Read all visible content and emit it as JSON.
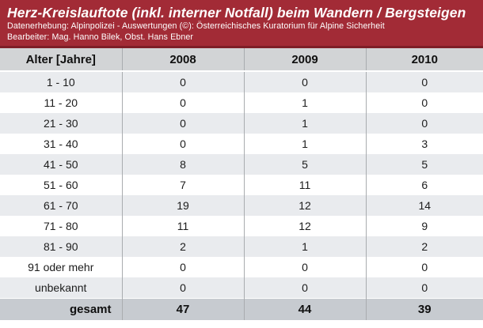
{
  "banner": {
    "title": "Herz-Kreislauftote (inkl. interner Notfall) beim Wandern / Bergsteigen",
    "subtitle1": "Datenerhebung: Alpinpolizei - Auswertungen (©): Österreichisches Kuratorium für Alpine Sicherheit",
    "subtitle2": "Bearbeiter: Mag. Hanno Bilek, Obst. Hans Ebner"
  },
  "colors": {
    "banner_bg": "#a22b36",
    "banner_border": "#7e1e27",
    "header_row_bg": "#d2d4d6",
    "shade_row_bg": "#e9ebee",
    "plain_row_bg": "#ffffff",
    "total_row_bg": "#c7cbd0",
    "grid_line": "#a9acaf",
    "body_text": "#1c1c1c"
  },
  "table": {
    "columns": [
      "Alter [Jahre]",
      "2008",
      "2009",
      "2010"
    ],
    "rows": [
      [
        "1 - 10",
        "0",
        "0",
        "0"
      ],
      [
        "11 - 20",
        "0",
        "1",
        "0"
      ],
      [
        "21 - 30",
        "0",
        "1",
        "0"
      ],
      [
        "31 - 40",
        "0",
        "1",
        "3"
      ],
      [
        "41 - 50",
        "8",
        "5",
        "5"
      ],
      [
        "51 - 60",
        "7",
        "11",
        "6"
      ],
      [
        "61 - 70",
        "19",
        "12",
        "14"
      ],
      [
        "71 - 80",
        "11",
        "12",
        "9"
      ],
      [
        "81 - 90",
        "2",
        "1",
        "2"
      ],
      [
        "91 oder mehr",
        "0",
        "0",
        "0"
      ],
      [
        "unbekannt",
        "0",
        "0",
        "0"
      ]
    ],
    "total_row": [
      "gesamt",
      "47",
      "44",
      "39"
    ]
  },
  "chart_data": {
    "type": "table",
    "title": "Herz-Kreislauftote (inkl. interner Notfall) beim Wandern / Bergsteigen",
    "xlabel": "Alter [Jahre]",
    "categories": [
      "1 - 10",
      "11 - 20",
      "21 - 30",
      "31 - 40",
      "41 - 50",
      "51 - 60",
      "61 - 70",
      "71 - 80",
      "81 - 90",
      "91 oder mehr",
      "unbekannt"
    ],
    "series": [
      {
        "name": "2008",
        "values": [
          0,
          0,
          0,
          0,
          8,
          7,
          19,
          11,
          2,
          0,
          0
        ],
        "total": 47
      },
      {
        "name": "2009",
        "values": [
          0,
          1,
          1,
          1,
          5,
          11,
          12,
          12,
          1,
          0,
          0
        ],
        "total": 44
      },
      {
        "name": "2010",
        "values": [
          0,
          0,
          0,
          3,
          5,
          6,
          14,
          9,
          2,
          0,
          0
        ],
        "total": 39
      }
    ],
    "total_label": "gesamt"
  }
}
